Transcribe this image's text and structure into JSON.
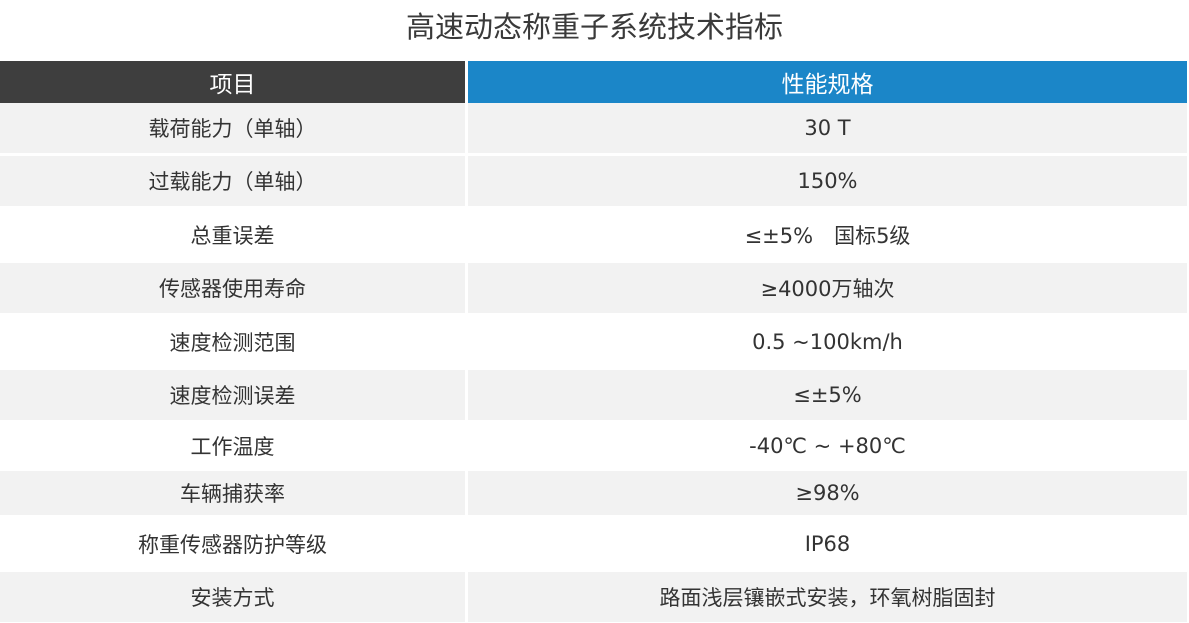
{
  "title": "高速动态称重子系统技术指标",
  "table": {
    "headers": [
      "项目",
      "性能规格"
    ],
    "rows": [
      [
        "载荷能力（单轴）",
        "30 T"
      ],
      [
        "过载能力（单轴）",
        "150%"
      ],
      [
        "总重误差",
        "≤±5%　国标5级"
      ],
      [
        "传感器使用寿命",
        "≥4000万轴次"
      ],
      [
        "速度检测范围",
        "0.5 ~100km/h"
      ],
      [
        "速度检测误差",
        "≤±5%"
      ],
      [
        "工作温度",
        "-40℃ ~ +80℃"
      ],
      [
        "车辆捕获率",
        "≥98%"
      ],
      [
        "称重传感器防护等级",
        "IP68"
      ],
      [
        "安装方式",
        "路面浅层镶嵌式安装，环氧树脂固封"
      ]
    ]
  },
  "colors": {
    "header_left": "#3e3e3e",
    "header_right": "#1b86c8",
    "row_shade": "#f2f2f2",
    "row_plain": "#ffffff"
  }
}
